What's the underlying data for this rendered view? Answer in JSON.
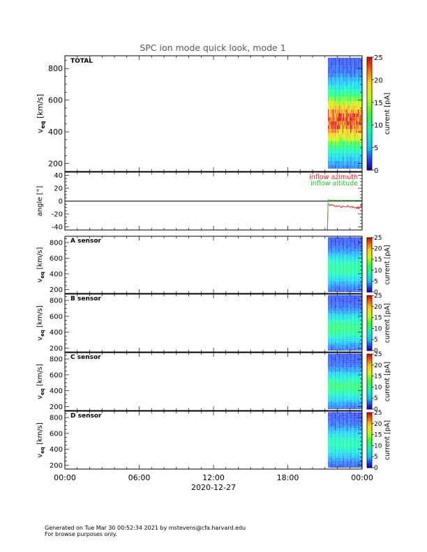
{
  "page": {
    "title": "SPC ion mode quick look, mode 1",
    "footer_line1": "Generated on Tue Mar 30 00:52:34 2021 by mstevens@cfa.harvard.edu",
    "footer_line2": "For browse purposes only."
  },
  "chart_data": [
    {
      "type": "heatmap",
      "name": "total-spectrogram",
      "panel_label": "TOTAL",
      "ylabel": "v_eq [km/s]",
      "ylim": [
        150,
        880
      ],
      "yticks": [
        200,
        400,
        600,
        800
      ],
      "colorbar": {
        "label": "current [pA]",
        "range": [
          0,
          25
        ],
        "ticks": [
          0,
          5,
          10,
          15,
          20,
          25
        ],
        "colormap": "rainbow"
      },
      "data_x_range": [
        "21:15",
        "24:00"
      ],
      "peak_velocity": 470,
      "peak_current": 23
    },
    {
      "type": "line",
      "name": "inflow-angles",
      "ylabel": "angle [°]",
      "ylim": [
        -45,
        45
      ],
      "yticks": [
        -40,
        -20,
        0,
        20,
        40
      ],
      "zero_line": true,
      "series": [
        {
          "name": "inflow azimuth",
          "color": "#ff2020",
          "x": [
            "21:15",
            "21:30",
            "22:00",
            "22:30",
            "23:00",
            "23:30",
            "23:45",
            "24:00"
          ],
          "y": [
            -5,
            -6,
            -8,
            -9,
            -8,
            -10,
            -11,
            -6
          ]
        },
        {
          "name": "inflow altitude",
          "color": "#20d020",
          "x": [
            "21:15",
            "21:30",
            "22:00",
            "22:30",
            "23:00",
            "23:30",
            "23:45",
            "24:00"
          ],
          "y": [
            2,
            1,
            1,
            1,
            0.5,
            1,
            0.5,
            1
          ]
        }
      ],
      "start_spike": {
        "x": "21:12",
        "y": -45
      }
    },
    {
      "type": "heatmap",
      "name": "a-sensor-spectrogram",
      "panel_label": "A sensor",
      "ylabel": "v_eq [km/s]",
      "ylim": [
        150,
        880
      ],
      "yticks": [
        200,
        400,
        600,
        800
      ],
      "colorbar": {
        "label": "current [pA]",
        "range": [
          0,
          25
        ],
        "ticks": [
          0,
          5,
          10,
          15,
          20,
          25
        ],
        "colormap": "rainbow"
      },
      "data_x_range": [
        "21:15",
        "24:00"
      ],
      "peak_velocity": 470,
      "peak_current": 8
    },
    {
      "type": "heatmap",
      "name": "b-sensor-spectrogram",
      "panel_label": "B sensor",
      "ylabel": "v_eq [km/s]",
      "ylim": [
        150,
        880
      ],
      "yticks": [
        200,
        400,
        600,
        800
      ],
      "colorbar": {
        "label": "current [pA]",
        "range": [
          0,
          25
        ],
        "ticks": [
          0,
          5,
          10,
          15,
          20,
          25
        ],
        "colormap": "rainbow"
      },
      "data_x_range": [
        "21:15",
        "24:00"
      ],
      "peak_velocity": 450,
      "peak_current": 9
    },
    {
      "type": "heatmap",
      "name": "c-sensor-spectrogram",
      "panel_label": "C sensor",
      "ylabel": "v_eq [km/s]",
      "ylim": [
        150,
        880
      ],
      "yticks": [
        200,
        400,
        600,
        800
      ],
      "colorbar": {
        "label": "current [pA]",
        "range": [
          0,
          25
        ],
        "ticks": [
          0,
          5,
          10,
          15,
          20,
          25
        ],
        "colormap": "rainbow"
      },
      "data_x_range": [
        "21:15",
        "24:00"
      ],
      "peak_velocity": 450,
      "peak_current": 9
    },
    {
      "type": "heatmap",
      "name": "d-sensor-spectrogram",
      "panel_label": "D sensor",
      "ylabel": "v_eq [km/s]",
      "ylim": [
        150,
        880
      ],
      "yticks": [
        200,
        400,
        600,
        800
      ],
      "colorbar": {
        "label": "current [pA]",
        "range": [
          0,
          25
        ],
        "ticks": [
          0,
          5,
          10,
          15,
          20,
          25
        ],
        "colormap": "rainbow"
      },
      "data_x_range": [
        "21:15",
        "24:00"
      ],
      "peak_velocity": 470,
      "peak_current": 7
    }
  ],
  "x_axis": {
    "range": [
      "00:00",
      "24:00"
    ],
    "ticks": [
      "00:00",
      "06:00",
      "12:00",
      "18:00",
      "00:00"
    ],
    "date_label": "2020-12-27"
  }
}
